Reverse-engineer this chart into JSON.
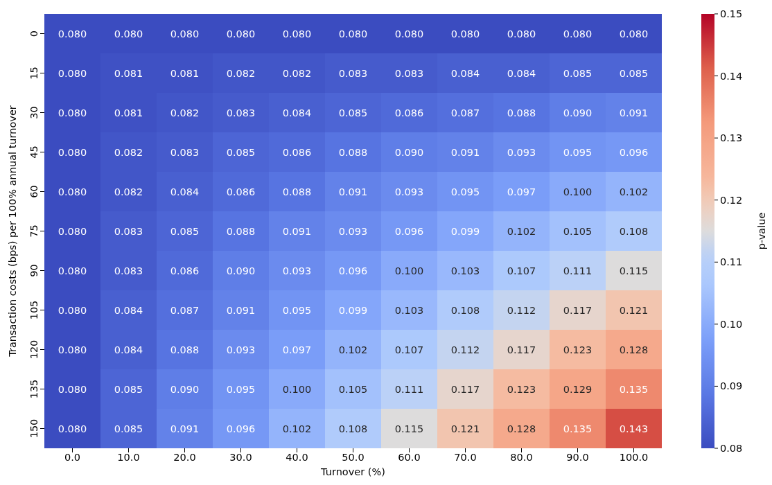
{
  "chart_data": {
    "type": "heatmap",
    "xlabel": "Turnover (%)",
    "ylabel": "Transaction costs (bps) per 100% annual turnover",
    "clabel": "p-value",
    "categories": [
      "0.0",
      "10.0",
      "20.0",
      "30.0",
      "40.0",
      "50.0",
      "60.0",
      "70.0",
      "80.0",
      "90.0",
      "100.0"
    ],
    "y_categories": [
      "0",
      "15",
      "30",
      "45",
      "60",
      "75",
      "90",
      "105",
      "120",
      "135",
      "150"
    ],
    "clim": [
      0.08,
      0.15
    ],
    "cticks": [
      0.08,
      0.09,
      {
        "value": 0.1,
        "label": "0.10"
      },
      0.11,
      0.12,
      0.13,
      0.14,
      0.15
    ],
    "cells": [
      [
        0.08,
        0.08,
        0.08,
        0.08,
        0.08,
        0.08,
        0.08,
        0.08,
        0.08,
        0.08,
        0.08
      ],
      [
        0.08,
        0.081,
        0.081,
        0.082,
        0.082,
        0.083,
        0.083,
        0.084,
        0.084,
        0.085,
        0.085
      ],
      [
        0.08,
        0.081,
        0.082,
        0.083,
        0.084,
        0.085,
        0.086,
        0.087,
        0.088,
        0.09,
        0.091
      ],
      [
        0.08,
        0.082,
        0.083,
        0.085,
        0.086,
        0.088,
        0.09,
        0.091,
        0.093,
        0.095,
        0.096
      ],
      [
        0.08,
        0.082,
        0.084,
        0.086,
        0.088,
        0.091,
        0.093,
        0.095,
        0.097,
        0.1,
        0.102
      ],
      [
        0.08,
        0.083,
        0.085,
        0.088,
        0.091,
        0.093,
        0.096,
        0.099,
        0.102,
        0.105,
        0.108
      ],
      [
        0.08,
        0.083,
        0.086,
        0.09,
        0.093,
        0.096,
        0.1,
        0.103,
        0.107,
        0.111,
        0.115
      ],
      [
        0.08,
        0.084,
        0.087,
        0.091,
        0.095,
        0.099,
        0.103,
        0.108,
        0.112,
        0.117,
        0.121
      ],
      [
        0.08,
        0.084,
        0.088,
        0.093,
        0.097,
        0.102,
        0.107,
        0.112,
        0.117,
        0.123,
        0.128
      ],
      [
        0.08,
        0.085,
        0.09,
        0.095,
        0.1,
        0.105,
        0.111,
        0.117,
        0.123,
        0.129,
        0.135
      ],
      [
        0.08,
        0.085,
        0.091,
        0.096,
        0.102,
        0.108,
        0.115,
        0.121,
        0.128,
        0.135,
        0.143
      ]
    ],
    "cell_labels": [
      [
        "0.080",
        "0.080",
        "0.080",
        "0.080",
        "0.080",
        "0.080",
        "0.080",
        "0.080",
        "0.080",
        "0.080",
        "0.080"
      ],
      [
        "0.080",
        "0.081",
        "0.081",
        "0.082",
        "0.082",
        "0.083",
        "0.083",
        "0.084",
        "0.084",
        "0.085",
        "0.085"
      ],
      [
        "0.080",
        "0.081",
        "0.082",
        "0.083",
        "0.084",
        "0.085",
        "0.086",
        "0.087",
        "0.088",
        "0.090",
        "0.091"
      ],
      [
        "0.080",
        "0.082",
        "0.083",
        "0.085",
        "0.086",
        "0.088",
        "0.090",
        "0.091",
        "0.093",
        "0.095",
        "0.096"
      ],
      [
        "0.080",
        "0.082",
        "0.084",
        "0.086",
        "0.088",
        "0.091",
        "0.093",
        "0.095",
        "0.097",
        "0.100",
        "0.102"
      ],
      [
        "0.080",
        "0.083",
        "0.085",
        "0.088",
        "0.091",
        "0.093",
        "0.096",
        "0.099",
        "0.102",
        "0.105",
        "0.108"
      ],
      [
        "0.080",
        "0.083",
        "0.086",
        "0.090",
        "0.093",
        "0.096",
        "0.100",
        "0.103",
        "0.107",
        "0.111",
        "0.115"
      ],
      [
        "0.080",
        "0.084",
        "0.087",
        "0.091",
        "0.095",
        "0.099",
        "0.103",
        "0.108",
        "0.112",
        "0.117",
        "0.121"
      ],
      [
        "0.080",
        "0.084",
        "0.088",
        "0.093",
        "0.097",
        "0.102",
        "0.107",
        "0.112",
        "0.117",
        "0.123",
        "0.128"
      ],
      [
        "0.080",
        "0.085",
        "0.090",
        "0.095",
        "0.100",
        "0.105",
        "0.111",
        "0.117",
        "0.123",
        "0.129",
        "0.135"
      ],
      [
        "0.080",
        "0.085",
        "0.091",
        "0.096",
        "0.102",
        "0.108",
        "0.115",
        "0.121",
        "0.128",
        "0.135",
        "0.143"
      ]
    ]
  }
}
